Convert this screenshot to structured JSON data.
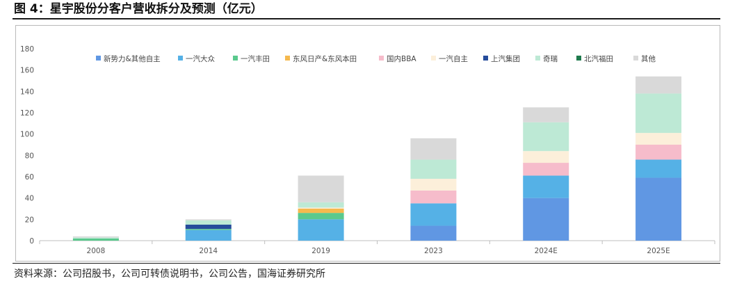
{
  "figure": {
    "title": "图 4：星宇股份分客户营收拆分及预测（亿元）",
    "source": "资料来源：公司招股书，公司可转债说明书，公司公告，国海证券研究所"
  },
  "chart_data": {
    "type": "bar",
    "stacked": true,
    "title": "",
    "xlabel": "",
    "ylabel": "",
    "ylim": [
      0,
      180
    ],
    "yticks": [
      0,
      20,
      40,
      60,
      80,
      100,
      120,
      140,
      160,
      180
    ],
    "grid": false,
    "legend_position": "top",
    "categories": [
      "2008",
      "2014",
      "2019",
      "2023",
      "2024E",
      "2025E"
    ],
    "series": [
      {
        "name": "新势力&其他自主",
        "color": "#6097e3",
        "values": [
          0,
          0,
          0,
          14,
          40,
          59
        ]
      },
      {
        "name": "一汽大众",
        "color": "#55b1e6",
        "values": [
          0,
          10,
          20,
          21,
          21,
          17
        ]
      },
      {
        "name": "一汽丰田",
        "color": "#5ac98d",
        "values": [
          2,
          1,
          6,
          0,
          0,
          0
        ]
      },
      {
        "name": "东风日产&东风本田",
        "color": "#f5b94e",
        "values": [
          0,
          0,
          4,
          0,
          0,
          0
        ]
      },
      {
        "name": "国内BBA",
        "color": "#f6bccb",
        "values": [
          0,
          0,
          0,
          12,
          12,
          14
        ]
      },
      {
        "name": "一汽自主",
        "color": "#fcefda",
        "values": [
          0,
          0,
          1,
          11,
          11,
          11
        ]
      },
      {
        "name": "上汽集团",
        "color": "#254c9b",
        "values": [
          0,
          4,
          0,
          0,
          0,
          0
        ]
      },
      {
        "name": "奇瑞",
        "color": "#bde9d5",
        "values": [
          1,
          4,
          5,
          18,
          27,
          37
        ]
      },
      {
        "name": "北汽福田",
        "color": "#1f7a4d",
        "values": [
          0,
          0,
          0,
          0,
          0,
          0
        ]
      },
      {
        "name": "其他",
        "color": "#d9d9d9",
        "values": [
          1,
          1,
          25,
          20,
          14,
          16
        ]
      }
    ]
  }
}
